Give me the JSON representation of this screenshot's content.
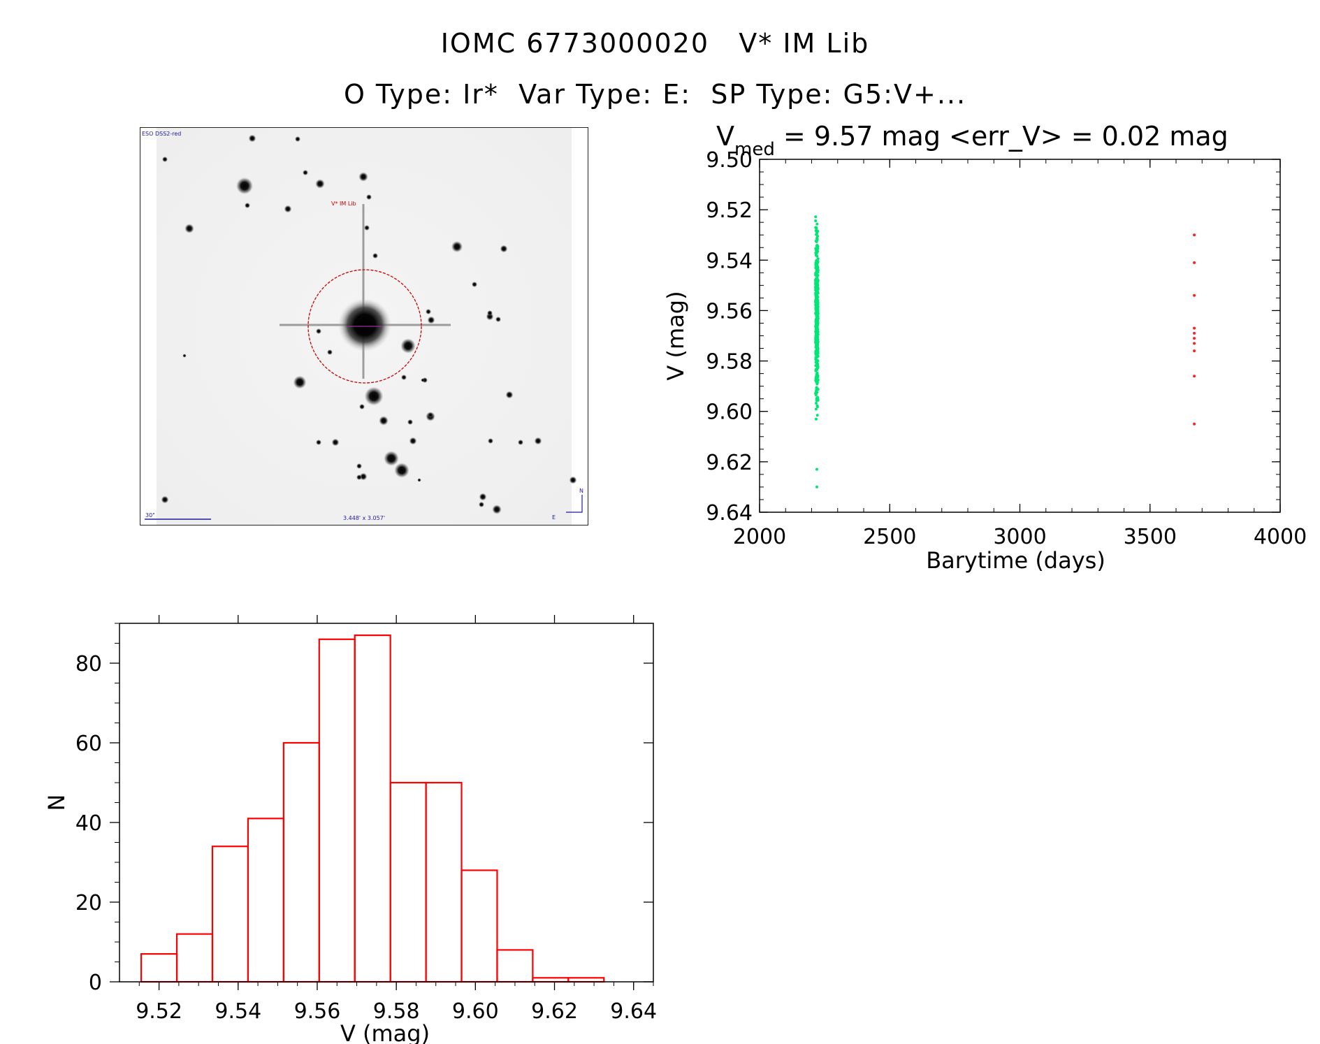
{
  "header": {
    "line1_id": "IOMC 6773000020",
    "line1_name": "V* IM Lib",
    "line2_otype": "O Type: Ir*",
    "line2_vartype": "Var Type: E:",
    "line2_sptype": "SP Type: G5:V+..."
  },
  "finder": {
    "survey_label": "ESO DSS2-red",
    "target_label": "V* IM Lib",
    "scale_label": "30\"",
    "fov_label": "3.448' x 3.057'",
    "north_label": "N",
    "east_label": "E",
    "colors": {
      "circle": "#cc0000",
      "labels": "#1a1aa0",
      "target_label": "#cc0000"
    }
  },
  "lightcurve": {
    "stats_v": "V",
    "stats_sub": "med",
    "stats_rest": " = 9.57 mag <err_V> = 0.02 mag"
  },
  "chart_data": [
    {
      "type": "scatter",
      "title": "",
      "xlabel": "Barytime (days)",
      "ylabel": "V (mag)",
      "xlim": [
        2000,
        4000
      ],
      "ylim": [
        9.64,
        9.5
      ],
      "y_inverted": true,
      "xticks": [
        "2000",
        "2500",
        "3000",
        "3500",
        "4000"
      ],
      "yticks": [
        "9.50",
        "9.52",
        "9.54",
        "9.56",
        "9.58",
        "9.60",
        "9.62",
        "9.64"
      ],
      "series": [
        {
          "color": "#00e676",
          "points_summary": {
            "x_range": [
              2215,
              2225
            ],
            "y_range": [
              9.515,
              9.613
            ],
            "count": 430
          },
          "extra_points": [
            [
              2220,
              9.623
            ],
            [
              2220,
              9.63
            ]
          ]
        },
        {
          "color": "#ff2020",
          "points": [
            [
              3670,
              9.53
            ],
            [
              3670,
              9.541
            ],
            [
              3670,
              9.554
            ],
            [
              3670,
              9.567
            ],
            [
              3670,
              9.569
            ],
            [
              3670,
              9.571
            ],
            [
              3670,
              9.573
            ],
            [
              3670,
              9.576
            ],
            [
              3670,
              9.586
            ],
            [
              3670,
              9.605
            ]
          ]
        }
      ]
    },
    {
      "type": "bar",
      "title": "",
      "xlabel": "V (mag)",
      "ylabel": "N",
      "xlim": [
        9.51,
        9.645
      ],
      "ylim": [
        0,
        90
      ],
      "xticks": [
        "9.52",
        "9.54",
        "9.56",
        "9.58",
        "9.60",
        "9.62",
        "9.64"
      ],
      "yticks": [
        "0",
        "20",
        "40",
        "60",
        "80"
      ],
      "bin_edges": [
        9.5155,
        9.5245,
        9.5335,
        9.5425,
        9.5515,
        9.5605,
        9.5695,
        9.5785,
        9.5875,
        9.5965,
        9.6055,
        9.6145,
        9.6235,
        9.6325
      ],
      "values": [
        7,
        12,
        34,
        41,
        60,
        86,
        87,
        50,
        50,
        28,
        8,
        1,
        1
      ],
      "color": "#ff0000"
    }
  ]
}
